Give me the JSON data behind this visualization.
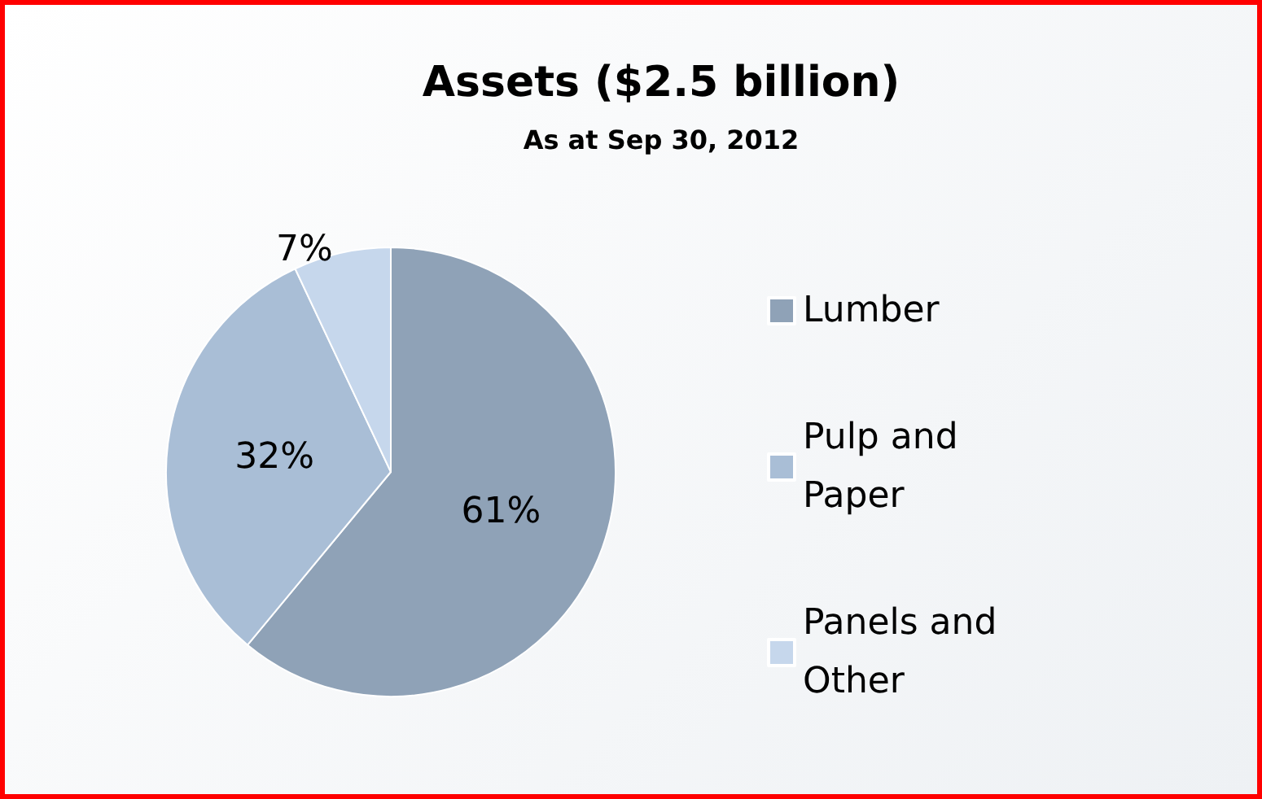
{
  "chart_data": {
    "type": "pie",
    "title": "Assets ($2.5 billion)",
    "subtitle": "As at Sep 30, 2012",
    "categories": [
      "Lumber",
      "Pulp and Paper",
      "Panels and Other"
    ],
    "values": [
      61,
      32,
      7
    ],
    "value_labels": [
      "61%",
      "32%",
      "7%"
    ],
    "colors": [
      "#8fa2b7",
      "#a9bed6",
      "#c6d7ec"
    ],
    "legend": "right"
  }
}
